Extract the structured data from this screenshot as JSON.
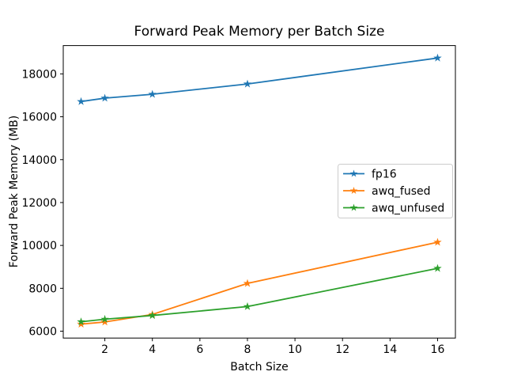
{
  "chart_data": {
    "type": "line",
    "title": "Forward Peak Memory per Batch Size",
    "xlabel": "Batch Size",
    "ylabel": "Forward Peak Memory (MB)",
    "x": [
      1,
      2,
      4,
      8,
      16
    ],
    "series": [
      {
        "name": "fp16",
        "color": "#1f77b4",
        "marker": "star",
        "values": [
          16710,
          16870,
          17050,
          17530,
          18740
        ]
      },
      {
        "name": "awq_fused",
        "color": "#ff7f0e",
        "marker": "star",
        "values": [
          6330,
          6430,
          6780,
          8230,
          10150
        ]
      },
      {
        "name": "awq_unfused",
        "color": "#2ca02c",
        "marker": "star",
        "values": [
          6440,
          6560,
          6730,
          7150,
          8930
        ]
      }
    ],
    "xticks": [
      2,
      4,
      6,
      8,
      10,
      12,
      14,
      16
    ],
    "yticks": [
      6000,
      8000,
      10000,
      12000,
      14000,
      16000,
      18000
    ],
    "xlim": [
      0.25,
      16.75
    ],
    "ylim": [
      5680,
      19320
    ],
    "grid": false,
    "legend_position": "center right",
    "background_color": "#ffffff",
    "axes_color": "#000000",
    "legend_border_color": "#cccccc"
  }
}
